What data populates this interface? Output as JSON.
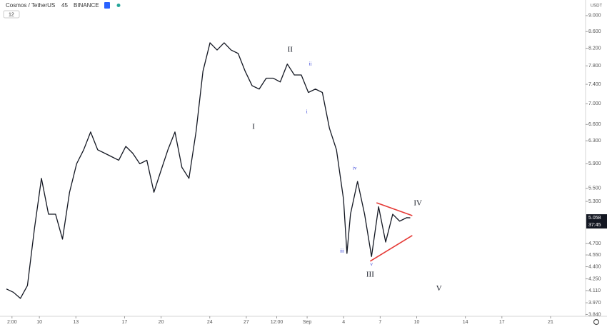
{
  "chart_data": {
    "type": "line",
    "header": {
      "symbol": "Cosmos / TetherUS",
      "interval": "45",
      "exchange": "BINANCE",
      "badge": "12"
    },
    "currency": "USDT",
    "log_scale": true,
    "x": [
      7.29,
      7.87,
      8.44,
      9.02,
      9.6,
      10.17,
      10.75,
      11.33,
      11.9,
      12.48,
      13.06,
      13.64,
      14.21,
      14.79,
      15.37,
      15.94,
      16.52,
      17.1,
      17.67,
      18.25,
      18.83,
      19.41,
      19.98,
      20.56,
      21.14,
      21.71,
      22.29,
      22.87,
      23.44,
      24.02,
      24.6,
      25.18,
      25.75,
      26.33,
      26.91,
      27.48,
      28.06,
      28.64,
      29.22,
      29.79,
      30.37,
      30.95,
      31.52,
      32.1,
      32.68,
      33.25,
      33.83,
      34.41,
      34.99,
      35.27,
      35.56,
      36.14,
      36.72,
      37.29,
      37.87,
      38.45,
      39.03,
      39.6,
      40.18,
      40.47
    ],
    "series": [
      {
        "color": "#131722",
        "values": [
          4.13,
          4.09,
          4.02,
          4.17,
          4.91,
          5.66,
          5.11,
          5.11,
          4.76,
          5.44,
          5.9,
          6.14,
          6.46,
          6.14,
          6.08,
          6.02,
          5.96,
          6.2,
          6.08,
          5.9,
          5.96,
          5.44,
          5.78,
          6.14,
          6.46,
          5.84,
          5.66,
          6.46,
          7.68,
          8.33,
          8.16,
          8.33,
          8.16,
          8.08,
          7.68,
          7.37,
          7.3,
          7.53,
          7.53,
          7.45,
          7.84,
          7.6,
          7.6,
          7.23,
          7.3,
          7.23,
          6.53,
          6.14,
          5.33,
          4.57,
          5.11,
          5.61,
          5.11,
          4.53,
          5.22,
          4.72,
          5.11,
          5.01,
          5.06,
          5.058
        ]
      }
    ],
    "xlim": [
      7.0,
      55.0
    ],
    "xticks": [
      {
        "value": 7.75,
        "label": "2:00"
      },
      10,
      13,
      17,
      20,
      24,
      27,
      {
        "value": 29.5,
        "label": "12:00"
      },
      {
        "value": 32,
        "label": "Sep"
      },
      {
        "value": 35,
        "label": "4"
      },
      {
        "value": 38,
        "label": "7"
      },
      {
        "value": 41,
        "label": "10"
      },
      {
        "value": 45,
        "label": "14"
      },
      {
        "value": 48,
        "label": "17"
      },
      {
        "value": 52,
        "label": "21"
      }
    ],
    "ylim": [
      3.82,
      9.41
    ],
    "yticks": [
      {
        "value": 9,
        "label": "9.000"
      },
      {
        "value": 8.6,
        "label": "8.600"
      },
      {
        "value": 8.2,
        "label": "8.200"
      },
      {
        "value": 7.8,
        "label": "7.800"
      },
      {
        "value": 7.4,
        "label": "7.400"
      },
      {
        "value": 7,
        "label": "7.000"
      },
      {
        "value": 6.6,
        "label": "6.600"
      },
      {
        "value": 6.3,
        "label": "6.300"
      },
      {
        "value": 5.9,
        "label": "5.900"
      },
      {
        "value": 5.5,
        "label": "5.500"
      },
      {
        "value": 5.3,
        "label": "5.300"
      },
      {
        "value": 4.7,
        "label": "4.700"
      },
      {
        "value": 4.55,
        "label": "4.550"
      },
      {
        "value": 4.4,
        "label": "4.400"
      },
      {
        "value": 4.25,
        "label": "4.250"
      },
      {
        "value": 4.11,
        "label": "4.110"
      },
      {
        "value": 3.97,
        "label": "3.970"
      },
      {
        "value": 3.84,
        "label": "3.840"
      }
    ],
    "last_price": {
      "value": 5.058,
      "label": "5.058"
    },
    "countdown": "37:45",
    "annotations": [
      {
        "text": "I",
        "x": 27.6,
        "y": 6.55,
        "color": "#131722"
      },
      {
        "text": "II",
        "x": 30.6,
        "y": 8.16,
        "color": "#131722"
      },
      {
        "text": "III",
        "x": 37.18,
        "y": 4.3,
        "color": "#131722"
      },
      {
        "text": "IV",
        "x": 41.1,
        "y": 5.27,
        "color": "#131722"
      },
      {
        "text": "V",
        "x": 42.83,
        "y": 4.13,
        "color": "#131722"
      },
      {
        "text": "i",
        "x": 31.98,
        "y": 6.84,
        "color": "#2f3bd6"
      },
      {
        "text": "ii",
        "x": 32.27,
        "y": 7.84,
        "color": "#2f3bd6"
      },
      {
        "text": "iii",
        "x": 34.87,
        "y": 4.6,
        "color": "#2f3bd6"
      },
      {
        "text": "iv",
        "x": 35.91,
        "y": 5.82,
        "color": "#2f3bd6"
      },
      {
        "text": "v",
        "x": 37.29,
        "y": 4.43,
        "color": "#2f3bd6"
      }
    ],
    "trendlines": [
      {
        "x": [
          37.7,
          40.64
        ],
        "y": [
          5.28,
          5.09
        ],
        "color": "#e53935"
      },
      {
        "x": [
          37.18,
          40.64
        ],
        "y": [
          4.47,
          4.81
        ],
        "color": "#e53935"
      }
    ]
  }
}
